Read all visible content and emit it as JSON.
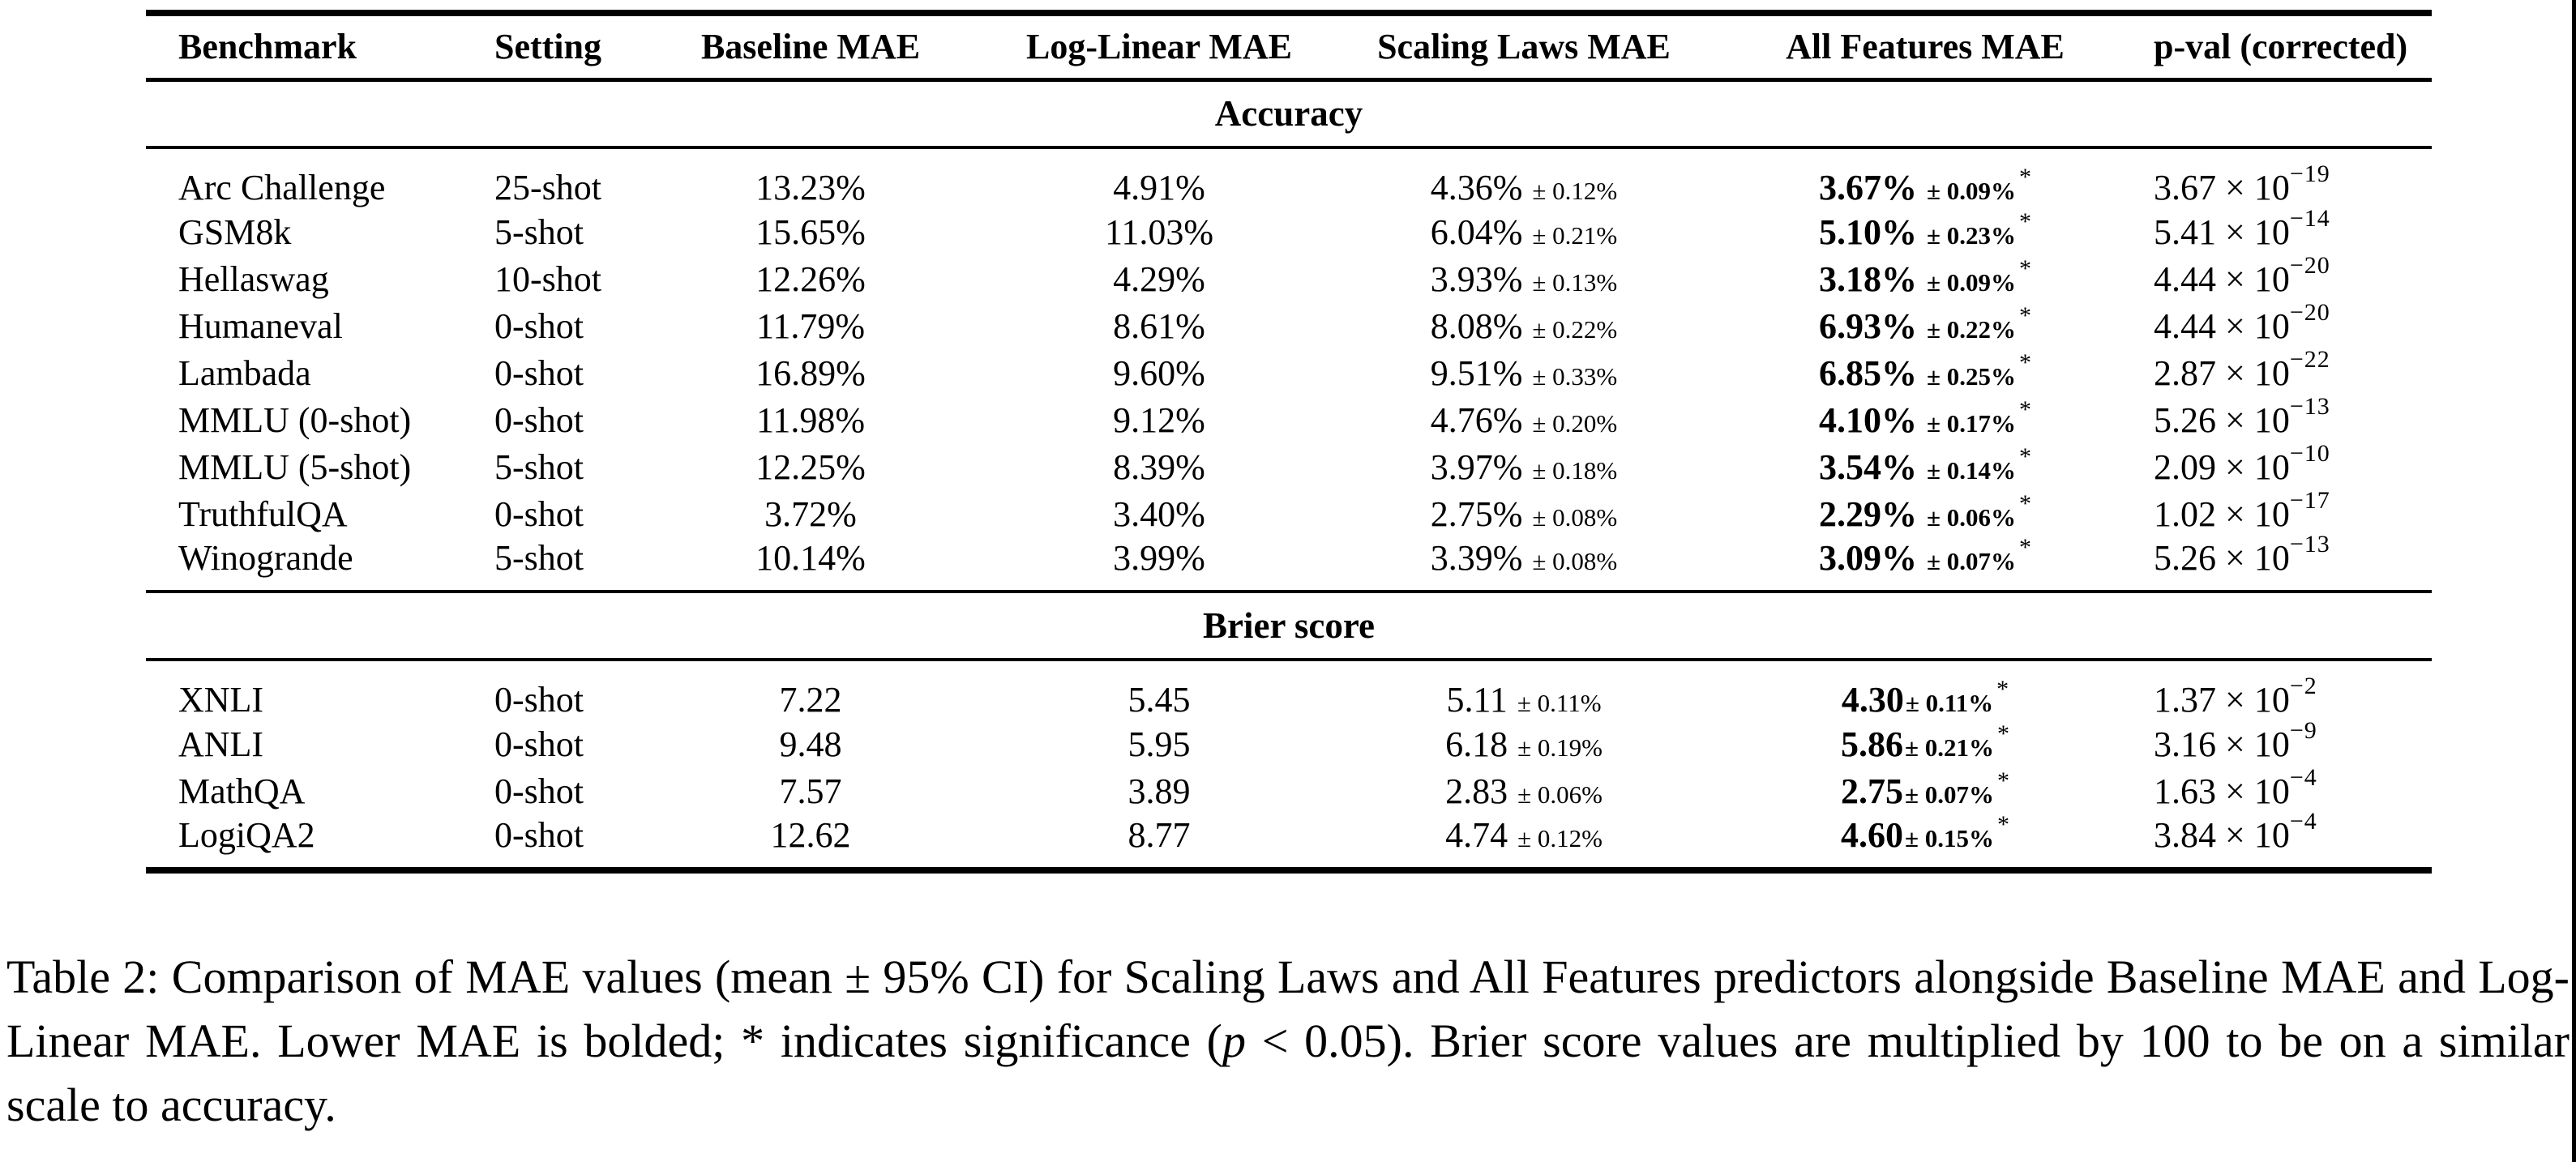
{
  "table": {
    "columns": {
      "benchmark": "Benchmark",
      "setting": "Setting",
      "baseline": "Baseline MAE",
      "loglinear": "Log-Linear MAE",
      "scaling": "Scaling Laws MAE",
      "allfeatures": "All Features MAE",
      "pval": "p-val (corrected)"
    },
    "sections": [
      {
        "label": "Accuracy",
        "rows": [
          {
            "benchmark": "Arc Challenge",
            "setting": "25-shot",
            "baseline": "13.23%",
            "loglinear": "4.91%",
            "scaling_value": "4.36%",
            "scaling_ci": "± 0.12%",
            "best_value": "3.67%",
            "best_ci": "± 0.09%",
            "best_sig": "*",
            "pval_base": "3.67 × 10",
            "pval_exp": "−19"
          },
          {
            "benchmark": "GSM8k",
            "setting": "5-shot",
            "baseline": "15.65%",
            "loglinear": "11.03%",
            "scaling_value": "6.04%",
            "scaling_ci": "± 0.21%",
            "best_value": "5.10%",
            "best_ci": "± 0.23%",
            "best_sig": "*",
            "pval_base": "5.41 × 10",
            "pval_exp": "−14"
          },
          {
            "benchmark": "Hellaswag",
            "setting": "10-shot",
            "baseline": "12.26%",
            "loglinear": "4.29%",
            "scaling_value": "3.93%",
            "scaling_ci": "± 0.13%",
            "best_value": "3.18%",
            "best_ci": "± 0.09%",
            "best_sig": "*",
            "pval_base": "4.44 × 10",
            "pval_exp": "−20"
          },
          {
            "benchmark": "Humaneval",
            "setting": "0-shot",
            "baseline": "11.79%",
            "loglinear": "8.61%",
            "scaling_value": "8.08%",
            "scaling_ci": "± 0.22%",
            "best_value": "6.93%",
            "best_ci": "± 0.22%",
            "best_sig": "*",
            "pval_base": "4.44 × 10",
            "pval_exp": "−20"
          },
          {
            "benchmark": "Lambada",
            "setting": "0-shot",
            "baseline": "16.89%",
            "loglinear": "9.60%",
            "scaling_value": "9.51%",
            "scaling_ci": "± 0.33%",
            "best_value": "6.85%",
            "best_ci": "± 0.25%",
            "best_sig": "*",
            "pval_base": "2.87 × 10",
            "pval_exp": "−22"
          },
          {
            "benchmark": "MMLU (0-shot)",
            "setting": "0-shot",
            "baseline": "11.98%",
            "loglinear": "9.12%",
            "scaling_value": "4.76%",
            "scaling_ci": "± 0.20%",
            "best_value": "4.10%",
            "best_ci": "± 0.17%",
            "best_sig": "*",
            "pval_base": "5.26 × 10",
            "pval_exp": "−13"
          },
          {
            "benchmark": "MMLU (5-shot)",
            "setting": "5-shot",
            "baseline": "12.25%",
            "loglinear": "8.39%",
            "scaling_value": "3.97%",
            "scaling_ci": "± 0.18%",
            "best_value": "3.54%",
            "best_ci": "± 0.14%",
            "best_sig": "*",
            "pval_base": "2.09 × 10",
            "pval_exp": "−10"
          },
          {
            "benchmark": "TruthfulQA",
            "setting": "0-shot",
            "baseline": "3.72%",
            "loglinear": "3.40%",
            "scaling_value": "2.75%",
            "scaling_ci": "± 0.08%",
            "best_value": "2.29%",
            "best_ci": "± 0.06%",
            "best_sig": "*",
            "pval_base": "1.02 × 10",
            "pval_exp": "−17"
          },
          {
            "benchmark": "Winogrande",
            "setting": "5-shot",
            "baseline": "10.14%",
            "loglinear": "3.99%",
            "scaling_value": "3.39%",
            "scaling_ci": "± 0.08%",
            "best_value": "3.09%",
            "best_ci": "± 0.07%",
            "best_sig": "*",
            "pval_base": "5.26 × 10",
            "pval_exp": "−13"
          }
        ]
      },
      {
        "label": "Brier score",
        "rows": [
          {
            "benchmark": "XNLI",
            "setting": "0-shot",
            "baseline": "7.22",
            "loglinear": "5.45",
            "scaling_value": "5.11",
            "scaling_ci": "± 0.11%",
            "best_value": "4.30",
            "best_ci": "± 0.11%",
            "best_sig": "*",
            "pval_base": "1.37 × 10",
            "pval_exp": "−2"
          },
          {
            "benchmark": "ANLI",
            "setting": "0-shot",
            "baseline": "9.48",
            "loglinear": "5.95",
            "scaling_value": "6.18",
            "scaling_ci": "± 0.19%",
            "best_value": "5.86",
            "best_ci": "± 0.21%",
            "best_sig": "*",
            "pval_base": "3.16 × 10",
            "pval_exp": "−9"
          },
          {
            "benchmark": "MathQA",
            "setting": "0-shot",
            "baseline": "7.57",
            "loglinear": "3.89",
            "scaling_value": "2.83",
            "scaling_ci": "± 0.06%",
            "best_value": "2.75",
            "best_ci": "± 0.07%",
            "best_sig": "*",
            "pval_base": "1.63 × 10",
            "pval_exp": "−4"
          },
          {
            "benchmark": "LogiQA2",
            "setting": "0-shot",
            "baseline": "12.62",
            "loglinear": "8.77",
            "scaling_value": "4.74",
            "scaling_ci": "± 0.12%",
            "best_value": "4.60",
            "best_ci": "± 0.15%",
            "best_sig": "*",
            "pval_base": "3.84 × 10",
            "pval_exp": "−4"
          }
        ]
      }
    ]
  },
  "caption": {
    "part1": "Table 2: Comparison of MAE values (mean ± 95% CI) for Scaling Laws and All Features predictors alongside Baseline MAE and Log-Linear MAE. Lower MAE is bolded; * indicates significance (",
    "part2": "p",
    "part3": " < 0.05). Brier score values are multiplied by 100 to be on a similar scale to accuracy."
  }
}
